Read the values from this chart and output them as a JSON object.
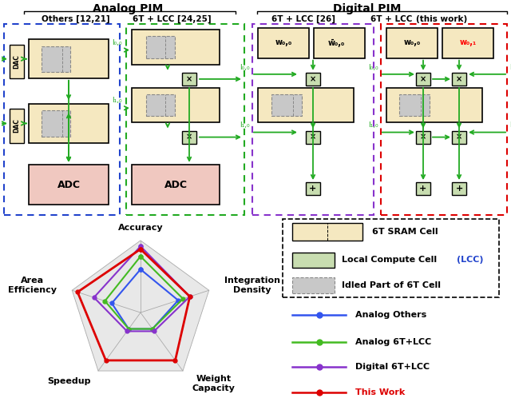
{
  "analog_pim_label": "Analog PIM",
  "digital_pim_label": "Digital PIM",
  "box_colors": {
    "sram_fill": "#F5E8C0",
    "lcc_fill": "#C8DDB0",
    "adc_fill": "#F0C8C0",
    "gray_fill": "#C8C8C8",
    "multiply_fill": "#B8D8A8"
  },
  "border_colors": {
    "blue_dashed": "#2244CC",
    "green_dashed": "#22AA22",
    "purple_dashed": "#8833CC",
    "red_dashed": "#DD0000"
  },
  "radar": {
    "categories": [
      "Accuracy",
      "Integration\nDensity",
      "Weight\nCapacity",
      "Speedup",
      "Area\nEfficiency"
    ],
    "series": {
      "Analog Others": {
        "values": [
          0.6,
          0.55,
          0.28,
          0.28,
          0.42
        ],
        "color": "#3355EE"
      },
      "Analog 6T+LCC": {
        "values": [
          0.78,
          0.62,
          0.28,
          0.28,
          0.52
        ],
        "color": "#44BB22"
      },
      "Digital 6T+LCC": {
        "values": [
          0.92,
          0.72,
          0.32,
          0.32,
          0.68
        ],
        "color": "#8833CC"
      },
      "This Work": {
        "values": [
          0.88,
          0.72,
          0.82,
          0.82,
          0.92
        ],
        "color": "#DD0000"
      }
    },
    "num_levels": 9
  }
}
